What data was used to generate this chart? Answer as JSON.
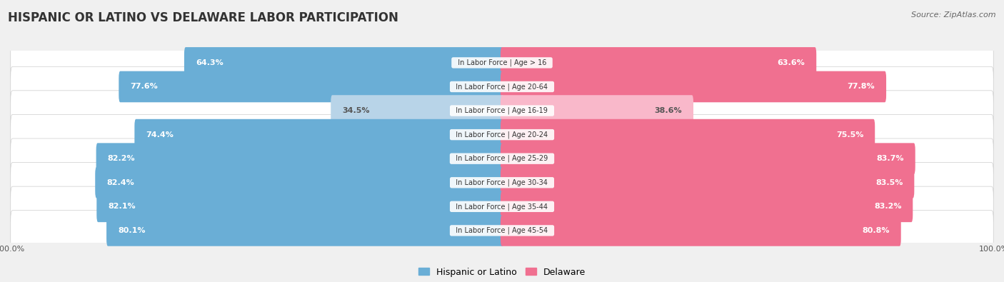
{
  "title": "HISPANIC OR LATINO VS DELAWARE LABOR PARTICIPATION",
  "source": "Source: ZipAtlas.com",
  "categories": [
    "In Labor Force | Age > 16",
    "In Labor Force | Age 20-64",
    "In Labor Force | Age 16-19",
    "In Labor Force | Age 20-24",
    "In Labor Force | Age 25-29",
    "In Labor Force | Age 30-34",
    "In Labor Force | Age 35-44",
    "In Labor Force | Age 45-54"
  ],
  "hispanic_values": [
    64.3,
    77.6,
    34.5,
    74.4,
    82.2,
    82.4,
    82.1,
    80.1
  ],
  "delaware_values": [
    63.6,
    77.8,
    38.6,
    75.5,
    83.7,
    83.5,
    83.2,
    80.8
  ],
  "hispanic_color": "#6aaed6",
  "hispanic_color_light": "#b8d4e8",
  "delaware_color": "#f07090",
  "delaware_color_light": "#f9b8ca",
  "label_color_dark": "#555555",
  "label_color_white": "#ffffff",
  "background_color": "#f0f0f0",
  "row_bg_color": "#ffffff",
  "max_value": 100.0,
  "threshold": 50.0,
  "legend_hispanic": "Hispanic or Latino",
  "legend_delaware": "Delaware",
  "title_fontsize": 12,
  "source_fontsize": 8,
  "bar_label_fontsize": 8,
  "category_fontsize": 7,
  "legend_fontsize": 9,
  "axis_label_fontsize": 8
}
